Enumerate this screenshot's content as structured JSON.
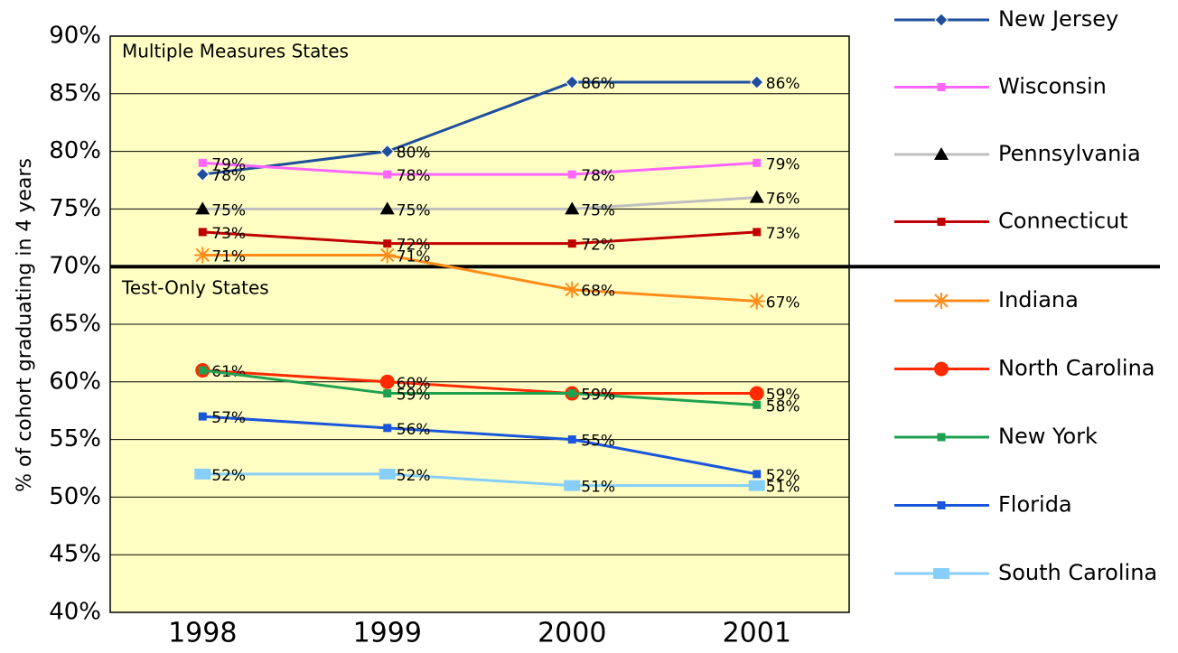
{
  "chart_data": {
    "type": "line",
    "y_label": "% of cohort graduating in 4 years",
    "annotations": [
      "Multiple Measures States",
      "Test-Only States"
    ],
    "categories": [
      "1998",
      "1999",
      "2000",
      "2001"
    ],
    "ylim": [
      40,
      90
    ],
    "yticks": [
      {
        "value": 40,
        "label": "40%"
      },
      {
        "value": 45,
        "label": "45%"
      },
      {
        "value": 50,
        "label": "50%"
      },
      {
        "value": 55,
        "label": "55%"
      },
      {
        "value": 60,
        "label": "60%"
      },
      {
        "value": 65,
        "label": "65%"
      },
      {
        "value": 70,
        "label": "70%"
      },
      {
        "value": 75,
        "label": "75%"
      },
      {
        "value": 80,
        "label": "80%"
      },
      {
        "value": 85,
        "label": "85%"
      },
      {
        "value": 90,
        "label": "90%"
      }
    ],
    "grid": true,
    "divider": 70,
    "series": [
      {
        "name": "New Jersey",
        "color": "#1f4e9c",
        "marker": "diamond",
        "values": [
          78,
          80,
          86,
          86
        ],
        "value_labels": [
          "78%",
          "80%",
          "86%",
          "86%"
        ]
      },
      {
        "name": "Wisconsin",
        "color": "#ff66ff",
        "marker": "square",
        "values": [
          79,
          78,
          78,
          79
        ],
        "value_labels": [
          "79%",
          "78%",
          "78%",
          "79%"
        ]
      },
      {
        "name": "Pennsylvania",
        "color": "#bfbfbf",
        "marker_color": "#000000",
        "marker": "triangle",
        "values": [
          75,
          75,
          75,
          76
        ],
        "value_labels": [
          "75%",
          "75%",
          "75%",
          "76%"
        ]
      },
      {
        "name": "Connecticut",
        "color": "#c00000",
        "marker": "square",
        "values": [
          73,
          72,
          72,
          73
        ],
        "value_labels": [
          "73%",
          "72%",
          "72%",
          "73%"
        ]
      },
      {
        "name": "Indiana",
        "color": "#ff8c1a",
        "marker": "star",
        "values": [
          71,
          71,
          68,
          67
        ],
        "value_labels": [
          "71%",
          "71%",
          "68%",
          "67%"
        ]
      },
      {
        "name": "North Carolina",
        "color": "#ff2a00",
        "marker": "circle",
        "values": [
          61,
          60,
          59,
          59
        ],
        "value_labels": [
          "61%",
          "60%",
          "59%",
          "59%"
        ]
      },
      {
        "name": "New York",
        "color": "#1fa050",
        "marker": "square",
        "values": [
          61,
          59,
          59,
          58
        ],
        "value_labels": [
          null,
          "59%",
          "59%",
          "58%"
        ]
      },
      {
        "name": "Florida",
        "color": "#1a56db",
        "marker": "square",
        "values": [
          57,
          56,
          55,
          52
        ],
        "value_labels": [
          "57%",
          "56%",
          "55%",
          "52%"
        ]
      },
      {
        "name": "South Carolina",
        "color": "#87cefa",
        "marker": "bigsquare",
        "values": [
          52,
          52,
          51,
          51
        ],
        "value_labels": [
          "52%",
          "52%",
          "51%",
          "51%"
        ]
      }
    ]
  }
}
